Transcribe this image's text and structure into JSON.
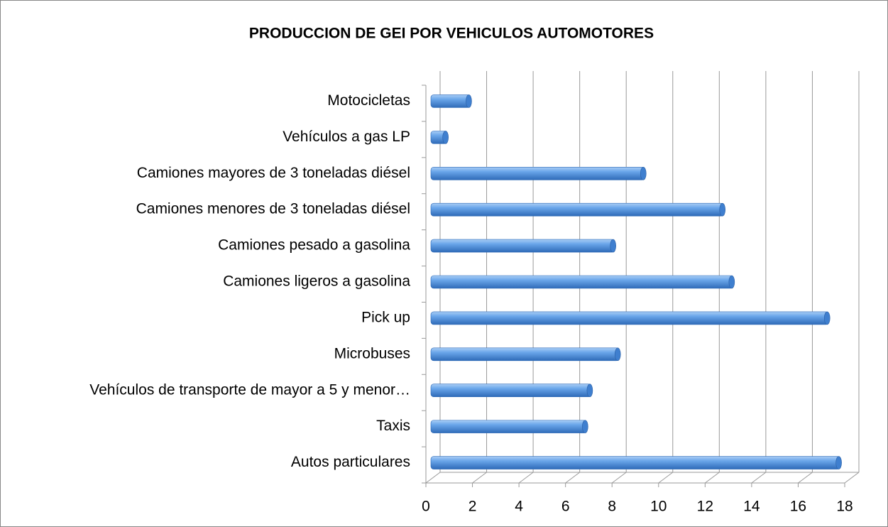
{
  "chart_data": {
    "type": "bar",
    "orientation": "horizontal",
    "title": "PRODUCCION DE GEI POR VEHICULOS AUTOMOTORES",
    "categories": [
      "Autos particulares",
      "Taxis",
      "Vehículos de transporte de mayor a 5 y menor…",
      "Microbuses",
      "Pick up",
      "Camiones ligeros a gasolina",
      "Camiones pesado a gasolina",
      "Camiones menores de 3 toneladas diésel",
      "Camiones mayores de 3 toneladas diésel",
      "Vehículos a gas LP",
      "Motocicletas"
    ],
    "values": [
      17.5,
      6.6,
      6.8,
      8.0,
      17.0,
      12.9,
      7.8,
      12.5,
      9.1,
      0.6,
      1.6
    ],
    "color": "#4f8fd9",
    "xlim": [
      0,
      18
    ],
    "xticks": [
      0,
      2,
      4,
      6,
      8,
      10,
      12,
      14,
      16,
      18
    ],
    "grid": true
  }
}
